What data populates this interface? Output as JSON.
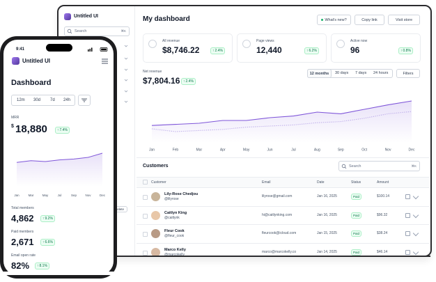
{
  "desktop": {
    "sidebar": {
      "brand": "Untitled UI",
      "search": "Search",
      "shortcut": "⌘K",
      "delete": "Delete"
    },
    "header": {
      "title": "My dashboard",
      "buttons": [
        "What's new?",
        "Copy link",
        "Visit store"
      ]
    },
    "stats": [
      {
        "label": "All revenue",
        "value": "$8,746.22",
        "change": "2.4%"
      },
      {
        "label": "Page views",
        "value": "12,440",
        "change": "6.2%"
      },
      {
        "label": "Active now",
        "value": "96",
        "change": "0.8%"
      }
    ],
    "revenue": {
      "label": "Net revenue",
      "value": "$7,804.16",
      "change": "2.4%",
      "ranges": [
        "12 months",
        "30 days",
        "7 days",
        "24 hours"
      ],
      "filters": "Filters"
    },
    "customers": {
      "title": "Customers",
      "search": "Search",
      "shortcut": "⌘K",
      "columns": [
        "Customer",
        "Email",
        "Date",
        "Status",
        "Amount"
      ],
      "rows": [
        {
          "name": "Lily-Rose Chedjou",
          "handle": "@lilyrose",
          "email": "lilyrose@gmail.com",
          "date": "Jan 16, 2025",
          "status": "Paid",
          "amount": "$100.14"
        },
        {
          "name": "Caitlyn King",
          "handle": "@caitlynk",
          "email": "hi@caitlynking.com",
          "date": "Jan 16, 2025",
          "status": "Paid",
          "amount": "$96.32"
        },
        {
          "name": "Fleur Cook",
          "handle": "@fleur_cook",
          "email": "fleurcook@icloud.com",
          "date": "Jan 15, 2025",
          "status": "Paid",
          "amount": "$38.24"
        },
        {
          "name": "Marco Kelly",
          "handle": "@marcokelly",
          "email": "marco@marcokelly.co",
          "date": "Jan 14, 2025",
          "status": "Paid",
          "amount": "$46.14"
        }
      ]
    }
  },
  "phone": {
    "time": "9:41",
    "brand": "Untitled UI",
    "title": "Dashboard",
    "ranges": [
      "12m",
      "30d",
      "7d",
      "24h"
    ],
    "metric": {
      "label": "MRR",
      "currency": "$",
      "value": "18,880",
      "change": "7.4%"
    },
    "stats": [
      {
        "label": "Total members",
        "value": "4,862",
        "change": "9.2%"
      },
      {
        "label": "Paid members",
        "value": "2,671",
        "change": "6.6%"
      },
      {
        "label": "Email open rate",
        "value": "82%",
        "change": "8.1%"
      }
    ]
  },
  "chart_data": [
    {
      "type": "line",
      "categories": [
        "Jan",
        "Feb",
        "Mar",
        "Apr",
        "May",
        "Jun",
        "Jul",
        "Aug",
        "Sep",
        "Oct",
        "Nov",
        "Dec"
      ],
      "ylim": [
        0,
        100
      ],
      "series": [
        {
          "color": "#7f56d9",
          "values": [
            31,
            33,
            35,
            40,
            40,
            45,
            48,
            55,
            52,
            60,
            68,
            75
          ]
        },
        {
          "color": "#b9a8e8",
          "dashed": true,
          "values": [
            25,
            20,
            22,
            24,
            28,
            30,
            32,
            36,
            38,
            44,
            52,
            56
          ]
        }
      ]
    },
    {
      "type": "area",
      "categories": [
        "Jan",
        "Mar",
        "May",
        "Jul",
        "Sep",
        "Nov",
        "Dec"
      ],
      "ylim": [
        0,
        100
      ],
      "series": [
        {
          "color": "#7f56d9",
          "values": [
            58,
            62,
            60,
            64,
            66,
            70,
            80
          ]
        }
      ]
    }
  ]
}
